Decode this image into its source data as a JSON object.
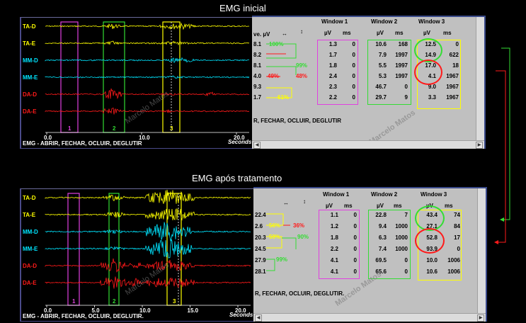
{
  "titles": {
    "top": "EMG inicial",
    "bottom": "EMG após tratamento"
  },
  "watermark": "Marcelo Matos",
  "colors": {
    "yellow": "#ffff00",
    "cyan": "#00e5ff",
    "red": "#ff1a1a",
    "magenta": "#e040e0",
    "green": "#33dd33",
    "trace_bg": "#000000"
  },
  "channels": [
    {
      "label": "TA-D",
      "color": "#ffff00"
    },
    {
      "label": "TA-E",
      "color": "#ffff00"
    },
    {
      "label": "MM-D",
      "color": "#00e5ff"
    },
    {
      "label": "MM-E",
      "color": "#00e5ff"
    },
    {
      "label": "DA-D",
      "color": "#ff1a1a"
    },
    {
      "label": "DA-E",
      "color": "#ff1a1a"
    }
  ],
  "top": {
    "footer": "EMG - ABRIR, FECHAR, OCLUIR, DEGLUTIR",
    "axis_unit": "Seconds",
    "ticks": [
      "0.0",
      "10.0",
      "20.0"
    ],
    "window_numbers": [
      "1",
      "2",
      "3"
    ],
    "table": {
      "col_left_header": "ve. µV",
      "windows": [
        "Window 1",
        "Window 2",
        "Window 3"
      ],
      "units": [
        "µV",
        "ms"
      ],
      "left_values": [
        "8.1",
        "8.2",
        "8.1",
        "4.0",
        "9.3",
        "1.7"
      ],
      "w1": [
        [
          "1.3",
          "0"
        ],
        [
          "1.7",
          "0"
        ],
        [
          "1.8",
          "0"
        ],
        [
          "2.4",
          "0"
        ],
        [
          "2.3",
          "0"
        ],
        [
          "2.2",
          "0"
        ]
      ],
      "w2": [
        [
          "10.6",
          "168"
        ],
        [
          "7.9",
          "1997"
        ],
        [
          "5.5",
          "1997"
        ],
        [
          "5.3",
          "1997"
        ],
        [
          "46.7",
          "0"
        ],
        [
          "29.7",
          "9"
        ]
      ],
      "w3": [
        [
          "12.5",
          "0"
        ],
        [
          "14.9",
          "622"
        ],
        [
          "17.0",
          "18"
        ],
        [
          "4.1",
          "1967"
        ],
        [
          "9.0",
          "1967"
        ],
        [
          "3.3",
          "1967"
        ]
      ],
      "percentages": [
        {
          "text": "100%",
          "color": "#33dd33"
        },
        {
          "text": "99%",
          "color": "#33dd33"
        },
        {
          "text": "49%",
          "color": "#ff1a1a"
        },
        {
          "text": "48%",
          "color": "#ff1a1a"
        },
        {
          "text": "61%",
          "color": "#ffff00"
        }
      ],
      "footer": "R, FECHAR, OCLUIR, DEGLUTIR"
    }
  },
  "bottom": {
    "footer": "EMG - ABRIR, FECHAR, OCLUIR, DEGLUTIR.",
    "axis_unit": "Seconds",
    "ticks": [
      "0.0",
      "5.0",
      "10.0",
      "15.0",
      "20.0"
    ],
    "window_numbers": [
      "1",
      "2",
      "3"
    ],
    "table": {
      "windows": [
        "Window 1",
        "Window 2",
        "Window 3"
      ],
      "units": [
        "µV",
        "ms"
      ],
      "left_values": [
        "22.4",
        "2.6",
        "20.3",
        "24.5",
        "27.9",
        "28.1"
      ],
      "w1": [
        [
          "1.1",
          "0"
        ],
        [
          "1.2",
          "0"
        ],
        [
          "1.8",
          "0"
        ],
        [
          "2.2",
          "0"
        ],
        [
          "4.1",
          "0"
        ],
        [
          "4.1",
          "0"
        ]
      ],
      "w2": [
        [
          "22.8",
          "7"
        ],
        [
          "9.4",
          "1000"
        ],
        [
          "6.3",
          "1000"
        ],
        [
          "7.4",
          "1000"
        ],
        [
          "69.5",
          "0"
        ],
        [
          "65.6",
          "0"
        ]
      ],
      "w3": [
        [
          "43.4",
          "74"
        ],
        [
          "27.1",
          "84"
        ],
        [
          "52.8",
          "17"
        ],
        [
          "93.9",
          "0"
        ],
        [
          "10.0",
          "1006"
        ],
        [
          "10.6",
          "1006"
        ]
      ],
      "percentages": [
        {
          "text": "56%",
          "color": "#ffff00"
        },
        {
          "text": "36%",
          "color": "#ff1a1a"
        },
        {
          "text": "59%",
          "color": "#ffff00"
        },
        {
          "text": "90%",
          "color": "#33dd33"
        },
        {
          "text": "99%",
          "color": "#33dd33"
        }
      ],
      "footer": "R, FECHAR, OCLUIR, DEGLUTIR."
    }
  }
}
